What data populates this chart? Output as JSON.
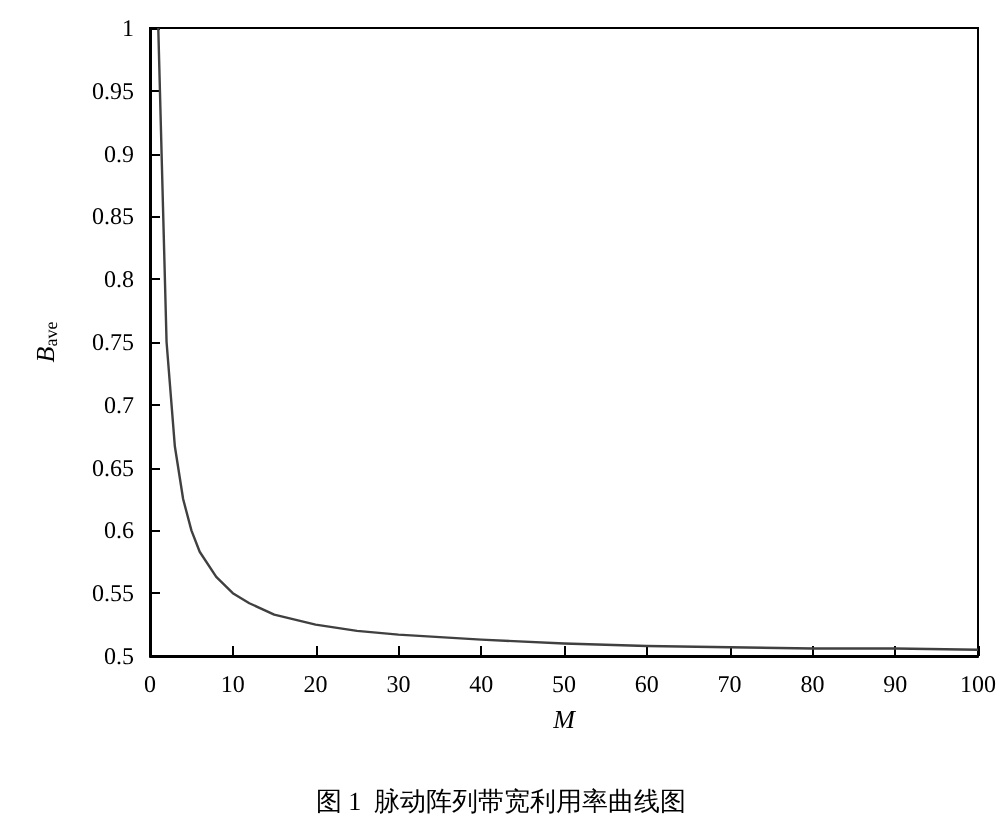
{
  "chart_data": {
    "type": "line",
    "title": "图 1  脉动阵列带宽利用率曲线图",
    "xlabel": "M",
    "ylabel": "B$_{ave}$",
    "x": [
      1,
      2,
      3,
      4,
      5,
      6,
      8,
      10,
      12,
      15,
      20,
      25,
      30,
      40,
      50,
      60,
      70,
      80,
      90,
      100
    ],
    "series": [
      {
        "color": "#404040",
        "values": [
          1,
          0.75,
          0.667,
          0.625,
          0.6,
          0.583,
          0.563,
          0.55,
          0.542,
          0.533,
          0.525,
          0.52,
          0.517,
          0.513,
          0.51,
          0.508,
          0.507,
          0.506,
          0.506,
          0.505
        ]
      }
    ],
    "xlim": [
      0,
      100
    ],
    "xticks": [
      0,
      10,
      20,
      30,
      40,
      50,
      60,
      70,
      80,
      90,
      100
    ],
    "ylim": [
      0.5,
      1
    ],
    "yticks": [
      0.5,
      0.55,
      0.6,
      0.65,
      0.7,
      0.75,
      0.8,
      0.85,
      0.9,
      0.95,
      1
    ],
    "grid": false,
    "marker": "none",
    "line_style": "solid"
  }
}
